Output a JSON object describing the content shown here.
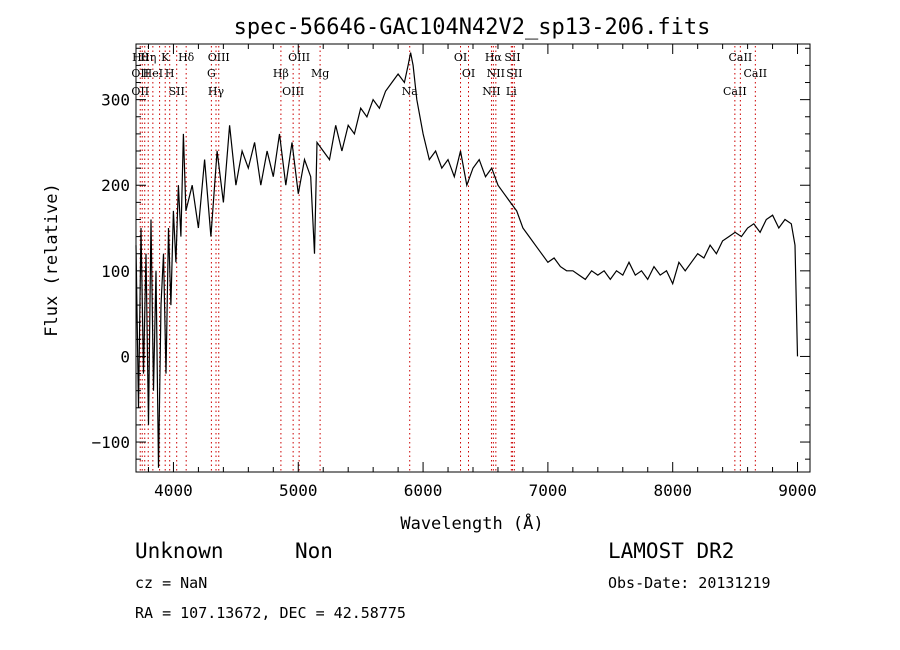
{
  "chart_data": {
    "type": "line",
    "title": "spec-56646-GAC104N42V2_sp13-206.fits",
    "xlabel": "Wavelength (Å)",
    "ylabel": "Flux (relative)",
    "xlim": [
      3700,
      9100
    ],
    "ylim": [
      -135,
      365
    ],
    "xticks": [
      4000,
      5000,
      6000,
      7000,
      8000,
      9000
    ],
    "yticks": [
      -100,
      0,
      100,
      200,
      300
    ],
    "xtick_labels": [
      "4000",
      "5000",
      "6000",
      "7000",
      "8000",
      "9000"
    ],
    "ytick_labels": [
      "−100",
      "0",
      "100",
      "200",
      "300"
    ],
    "grid": false,
    "line_color": "#000000",
    "marker_color": "#cc0000",
    "series": [
      {
        "x": [
          3700,
          3720,
          3740,
          3760,
          3780,
          3800,
          3820,
          3840,
          3860,
          3880,
          3900,
          3920,
          3940,
          3960,
          3980,
          4000,
          4020,
          4040,
          4060,
          4080,
          4100,
          4150,
          4200,
          4250,
          4300,
          4350,
          4400,
          4450,
          4500,
          4550,
          4600,
          4650,
          4700,
          4750,
          4800,
          4850,
          4900,
          4950,
          5000,
          5050,
          5100,
          5130,
          5150,
          5200,
          5250,
          5300,
          5350,
          5400,
          5450,
          5500,
          5550,
          5600,
          5650,
          5700,
          5750,
          5800,
          5850,
          5880,
          5900,
          5920,
          5950,
          6000,
          6050,
          6100,
          6150,
          6200,
          6250,
          6300,
          6350,
          6400,
          6450,
          6500,
          6550,
          6600,
          6650,
          6700,
          6750,
          6800,
          6850,
          6900,
          6950,
          7000,
          7050,
          7100,
          7150,
          7200,
          7250,
          7300,
          7350,
          7400,
          7450,
          7500,
          7550,
          7600,
          7650,
          7700,
          7750,
          7800,
          7850,
          7900,
          7950,
          8000,
          8050,
          8100,
          8150,
          8200,
          8250,
          8300,
          8350,
          8400,
          8450,
          8500,
          8550,
          8600,
          8650,
          8700,
          8750,
          8800,
          8850,
          8900,
          8950,
          8980,
          9000
        ],
        "y": [
          130,
          -60,
          150,
          -20,
          120,
          -80,
          160,
          -40,
          100,
          -130,
          60,
          120,
          -20,
          150,
          60,
          170,
          110,
          200,
          140,
          260,
          170,
          200,
          150,
          230,
          140,
          240,
          180,
          270,
          200,
          240,
          220,
          250,
          200,
          240,
          210,
          260,
          200,
          250,
          190,
          230,
          210,
          120,
          250,
          240,
          230,
          270,
          240,
          270,
          260,
          290,
          280,
          300,
          290,
          310,
          320,
          330,
          320,
          340,
          355,
          340,
          300,
          260,
          230,
          240,
          220,
          230,
          210,
          240,
          200,
          220,
          230,
          210,
          220,
          200,
          190,
          180,
          170,
          150,
          140,
          130,
          120,
          110,
          115,
          105,
          100,
          100,
          95,
          90,
          100,
          95,
          100,
          90,
          100,
          95,
          110,
          95,
          100,
          90,
          105,
          95,
          100,
          85,
          110,
          100,
          110,
          120,
          115,
          130,
          120,
          135,
          140,
          145,
          140,
          150,
          155,
          145,
          160,
          165,
          150,
          160,
          155,
          130,
          0
        ]
      }
    ],
    "lines": [
      {
        "x": 3734,
        "labels": [
          "Hθ",
          "OII",
          "OII"
        ]
      },
      {
        "x": 3750,
        "labels": []
      },
      {
        "x": 3770,
        "labels": []
      },
      {
        "x": 3798,
        "labels": [
          "Hη"
        ]
      },
      {
        "x": 3835,
        "labels": [
          "HeI"
        ]
      },
      {
        "x": 3889,
        "labels": []
      },
      {
        "x": 3934,
        "labels": [
          "K"
        ]
      },
      {
        "x": 3970,
        "labels": [
          "H"
        ]
      },
      {
        "x": 4026,
        "labels": [
          "SII"
        ]
      },
      {
        "x": 4102,
        "labels": [
          "Hδ"
        ]
      },
      {
        "x": 4304,
        "labels": [
          "G"
        ]
      },
      {
        "x": 4341,
        "labels": [
          "Hγ"
        ]
      },
      {
        "x": 4363,
        "labels": [
          "OIII"
        ]
      },
      {
        "x": 4861,
        "labels": [
          "Hβ"
        ]
      },
      {
        "x": 4959,
        "labels": [
          "OIII"
        ]
      },
      {
        "x": 5007,
        "labels": [
          "OIII"
        ]
      },
      {
        "x": 5175,
        "labels": [
          "Mg"
        ]
      },
      {
        "x": 5893,
        "labels": [
          "Na"
        ]
      },
      {
        "x": 6300,
        "labels": [
          "OI"
        ]
      },
      {
        "x": 6364,
        "labels": [
          "OI"
        ]
      },
      {
        "x": 6548,
        "labels": [
          "NII"
        ]
      },
      {
        "x": 6563,
        "labels": [
          "Hα"
        ]
      },
      {
        "x": 6583,
        "labels": [
          "NII"
        ]
      },
      {
        "x": 6707,
        "labels": [
          "Li"
        ]
      },
      {
        "x": 6716,
        "labels": [
          "SII"
        ]
      },
      {
        "x": 6731,
        "labels": [
          "SII"
        ]
      },
      {
        "x": 8498,
        "labels": [
          "CaII"
        ]
      },
      {
        "x": 8542,
        "labels": [
          "CaII"
        ]
      },
      {
        "x": 8662,
        "labels": [
          "CaII"
        ]
      }
    ]
  },
  "info": {
    "class": "Unknown",
    "subclass": "Non",
    "survey": "LAMOST DR2",
    "cz": "cz = NaN",
    "obs_date": "Obs-Date: 20131219",
    "coords": "RA = 107.13672, DEC =  42.58775"
  }
}
